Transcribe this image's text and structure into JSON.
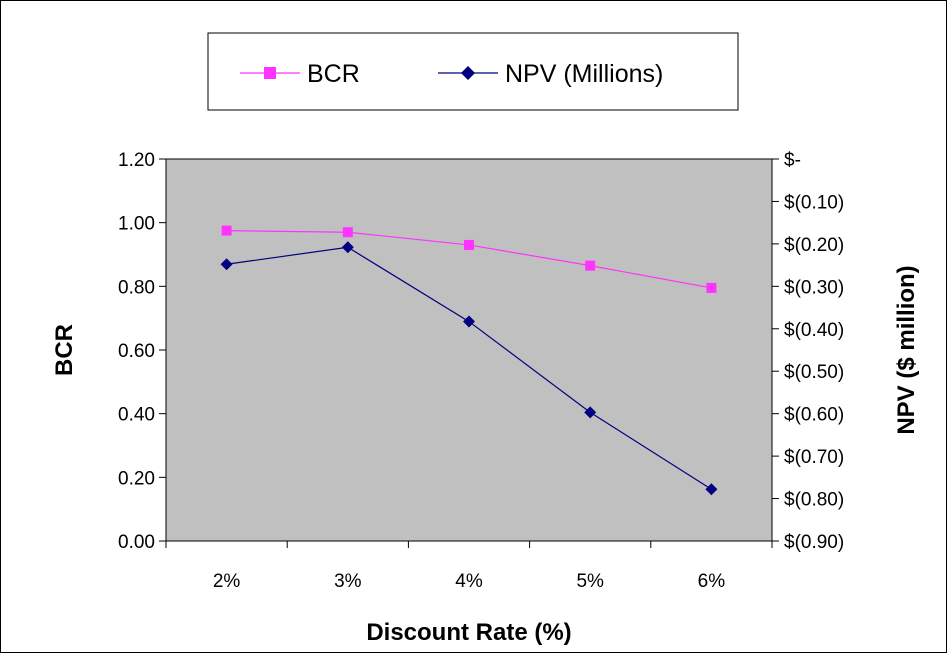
{
  "chart_data": {
    "type": "line",
    "categories": [
      "2%",
      "3%",
      "4%",
      "5%",
      "6%"
    ],
    "xlabel": "Discount Rate (%)",
    "ylabel": "BCR",
    "y2label": "NPV ($ million)",
    "ylim": [
      0,
      1.2
    ],
    "y2lim": [
      -0.9,
      0
    ],
    "yticks": [
      "0.00",
      "0.20",
      "0.40",
      "0.60",
      "0.80",
      "1.00",
      "1.20"
    ],
    "y2ticks": [
      "$(0.90)",
      "$(0.80)",
      "$(0.70)",
      "$(0.60)",
      "$(0.50)",
      "$(0.40)",
      "$(0.30)",
      "$(0.20)",
      "$(0.10)",
      "$-"
    ],
    "legend_position": "top",
    "grid": false,
    "plot_background": "#c0c0c0",
    "series": [
      {
        "name": "BCR",
        "axis": "left",
        "color": "#ff33ff",
        "marker": "square",
        "values": [
          0.975,
          0.97,
          0.93,
          0.865,
          0.795
        ]
      },
      {
        "name": "NPV (Millions)",
        "axis": "right",
        "color": "#000080",
        "marker": "diamond",
        "values": [
          -0.248,
          -0.208,
          -0.383,
          -0.597,
          -0.778
        ]
      }
    ]
  }
}
